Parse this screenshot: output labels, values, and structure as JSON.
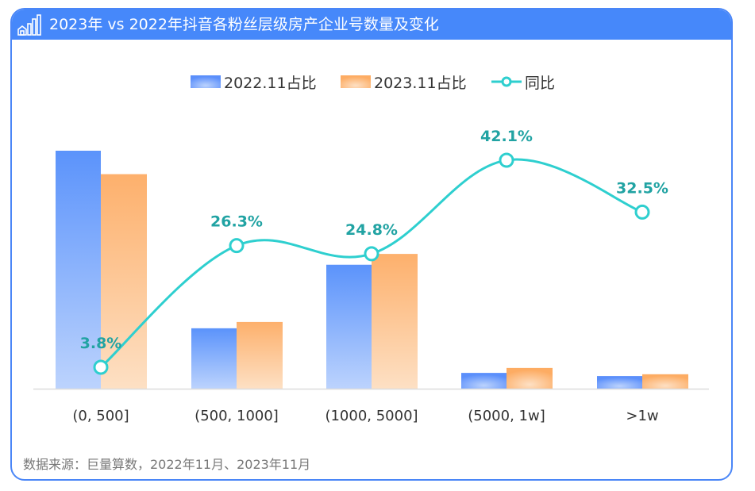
{
  "header": {
    "title": "2023年 vs 2022年抖音各粉丝层级房产企业号数量及变化",
    "icon": "house-bar-chart-icon"
  },
  "footer": {
    "source": "数据来源：巨量算数，2022年11月、2023年11月"
  },
  "colors": {
    "header_bg": "#4688fa",
    "series_2022": "#5b93fb",
    "series_2023": "#fdb06c",
    "yoy_line": "#2ecfcf",
    "yoy_label": "#21a3a3"
  },
  "chart_data": {
    "type": "bar",
    "title": "2023年 vs 2022年抖音各粉丝层级房产企业号数量及变化",
    "categories": [
      "(0, 500]",
      "(500, 1000]",
      "(1000, 5000]",
      "(5000, 1w]",
      ">1w"
    ],
    "series": [
      {
        "name": "2022.11占比",
        "kind": "bar",
        "values": [
          52.8,
          13.4,
          27.5,
          3.5,
          2.8
        ],
        "unit": "%"
      },
      {
        "name": "2023.11占比",
        "kind": "bar",
        "values": [
          47.6,
          14.8,
          29.9,
          4.6,
          3.2
        ],
        "unit": "%"
      },
      {
        "name": "同比",
        "kind": "line",
        "values": [
          3.8,
          26.3,
          24.8,
          42.1,
          32.5
        ],
        "labels": [
          "3.8%",
          "26.3%",
          "24.8%",
          "42.1%",
          "32.5%"
        ],
        "unit": "%"
      }
    ],
    "legend": [
      "2022.11占比",
      "2023.11占比",
      "同比"
    ],
    "legend_position": "top",
    "xlabel": "",
    "ylabel": "",
    "bar_ylim": [
      0,
      52.8
    ],
    "line_ylim": [
      -10,
      50
    ],
    "grid": false,
    "y_axis_visible": false
  }
}
